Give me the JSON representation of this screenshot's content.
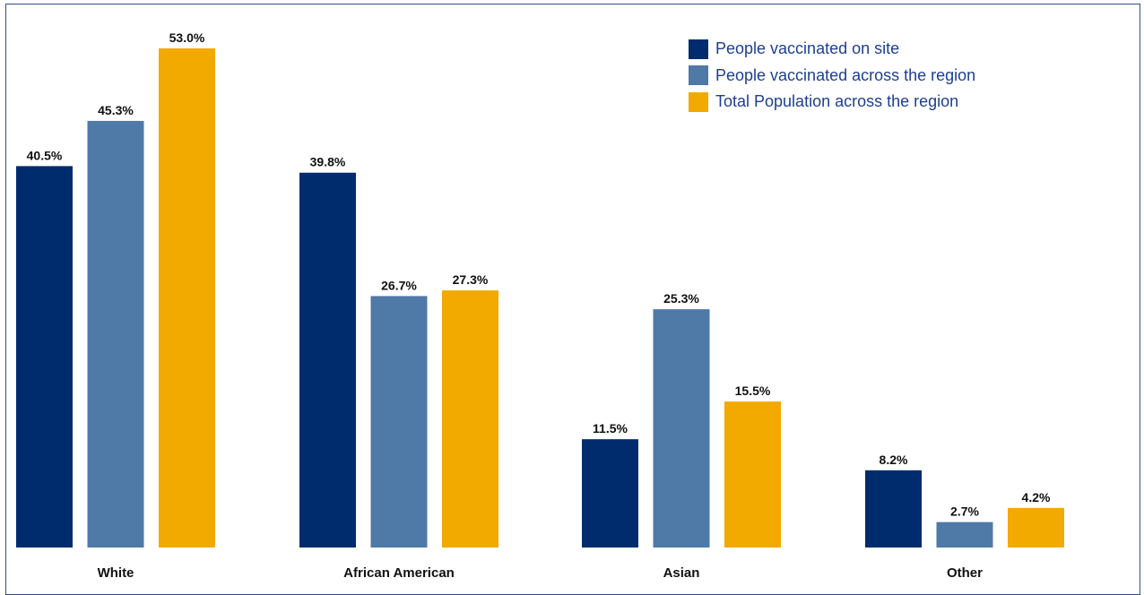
{
  "chart_data": {
    "type": "bar",
    "title": "",
    "xlabel": "",
    "ylabel": "",
    "ylim": [
      0,
      53.0
    ],
    "grid": false,
    "legend_position": "top-right",
    "categories": [
      "White",
      "African American",
      "Asian",
      "Other"
    ],
    "series": [
      {
        "name": "People vaccinated on site",
        "color": "#002c6e",
        "values": [
          40.5,
          39.8,
          11.5,
          8.2
        ],
        "labels": [
          "40.5%",
          "39.8%",
          "11.5%",
          "8.2%"
        ]
      },
      {
        "name": "People vaccinated across the region",
        "color": "#4f79a7",
        "values": [
          45.3,
          26.7,
          25.3,
          2.7
        ],
        "labels": [
          "45.3%",
          "26.7%",
          "25.3%",
          "2.7%"
        ]
      },
      {
        "name": "Total Population across the region",
        "color": "#f2a900",
        "values": [
          53.0,
          27.3,
          15.5,
          4.2
        ],
        "labels": [
          "53.0%",
          "27.3%",
          "15.5%",
          "4.2%"
        ]
      }
    ]
  }
}
